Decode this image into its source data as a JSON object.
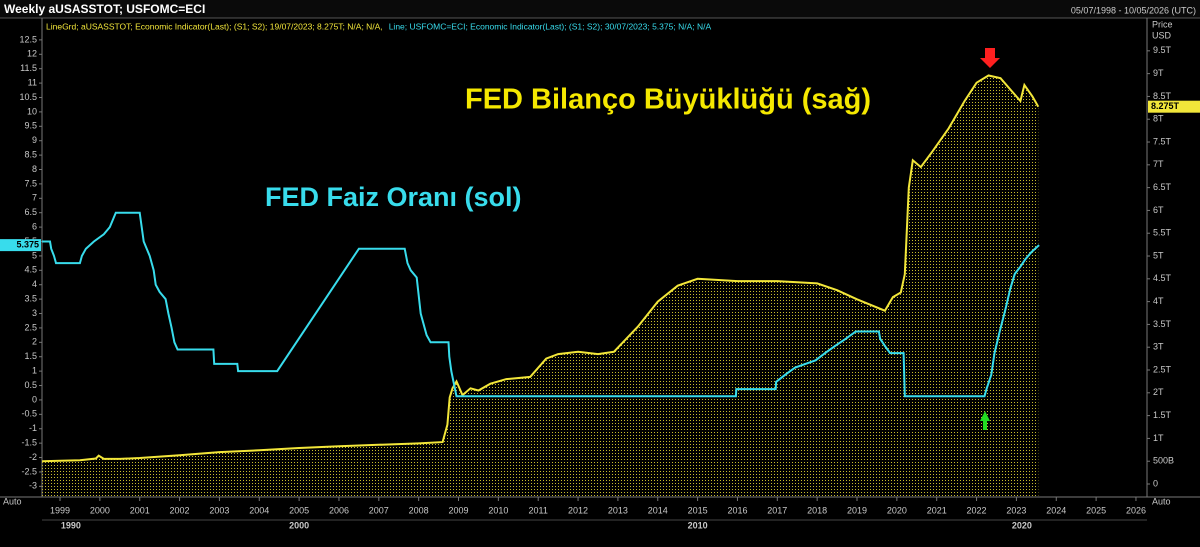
{
  "chart_data": {
    "type": "line",
    "title": "Weekly aUSASSTOT; USFOMC=ECI",
    "date_range": "05/07/1998 - 10/05/2026 (UTC)",
    "y2_label_lines": [
      "Price",
      "USD"
    ],
    "axis_mode": "Auto",
    "annotations": [
      "FED Bilanço Büyüklüğü (sağ)",
      "FED Faiz Oranı (sol)"
    ],
    "xlim": [
      1998.548,
      2026.277
    ],
    "xticks": [
      1999,
      2000,
      2001,
      2002,
      2003,
      2004,
      2005,
      2006,
      2007,
      2008,
      2009,
      2010,
      2011,
      2012,
      2013,
      2014,
      2015,
      2016,
      2017,
      2018,
      2019,
      2020,
      2021,
      2022,
      2023,
      2024,
      2025,
      2026
    ],
    "decade_ticks": [
      1990,
      2000,
      2010,
      2020
    ],
    "ylim": [
      -3.37,
      13.26
    ],
    "yticks": [
      -3,
      -2.5,
      -2,
      -1.5,
      -1,
      -0.5,
      0,
      0.5,
      1,
      1.5,
      2,
      2.5,
      3,
      3.5,
      4,
      4.5,
      5,
      5.5,
      6,
      6.5,
      7,
      7.5,
      8,
      8.5,
      9,
      9.5,
      10,
      10.5,
      11,
      11.5,
      12,
      12.5
    ],
    "y2lim": [
      -0.285,
      10.22
    ],
    "y2ticks": [
      0,
      {
        "value": 0.5,
        "label": "500B"
      },
      {
        "value": 1,
        "label": "1T"
      },
      {
        "value": 1.5,
        "label": "1.5T"
      },
      {
        "value": 2,
        "label": "2T"
      },
      {
        "value": 2.5,
        "label": "2.5T"
      },
      {
        "value": 3,
        "label": "3T"
      },
      {
        "value": 3.5,
        "label": "3.5T"
      },
      {
        "value": 4,
        "label": "4T"
      },
      {
        "value": 4.5,
        "label": "4.5T"
      },
      {
        "value": 5,
        "label": "5T"
      },
      {
        "value": 5.5,
        "label": "5.5T"
      },
      {
        "value": 6,
        "label": "6T"
      },
      {
        "value": 6.5,
        "label": "6.5T"
      },
      {
        "value": 7,
        "label": "7T"
      },
      {
        "value": 7.5,
        "label": "7.5T"
      },
      {
        "value": 8,
        "label": "8T"
      },
      {
        "value": 8.5,
        "label": "8.5T"
      },
      {
        "value": 9,
        "label": "9T"
      },
      {
        "value": 9.5,
        "label": "9.5T"
      }
    ],
    "series": [
      {
        "name": "LineGrd; aUSASSTOT; Economic Indicator(Last); (S1; S2); 19/07/2023; 8.275T; N/A; N/A,",
        "color": "#f2e63a",
        "axis": "y2",
        "fill": "dotted",
        "last_label": "8.275T",
        "x": [
          1998.55,
          1999.0,
          1999.5,
          1999.9,
          1999.97,
          2000.1,
          2000.5,
          2001,
          2002,
          2003,
          2004,
          2005,
          2006,
          2007,
          2008,
          2008.6,
          2008.72,
          2008.78,
          2008.85,
          2008.95,
          2009.1,
          2009.3,
          2009.5,
          2009.8,
          2010.2,
          2010.8,
          2011.2,
          2011.5,
          2012.0,
          2012.5,
          2012.9,
          2013.5,
          2014.0,
          2014.5,
          2015.0,
          2016.0,
          2017.0,
          2018.0,
          2018.5,
          2019.0,
          2019.7,
          2019.9,
          2020.1,
          2020.2,
          2020.3,
          2020.4,
          2020.6,
          2020.9,
          2021.3,
          2021.7,
          2022.0,
          2022.3,
          2022.6,
          2022.9,
          2023.1,
          2023.2,
          2023.4,
          2023.55
        ],
        "values": [
          0.5,
          0.51,
          0.52,
          0.56,
          0.62,
          0.55,
          0.55,
          0.57,
          0.63,
          0.7,
          0.74,
          0.79,
          0.83,
          0.86,
          0.89,
          0.92,
          1.3,
          1.9,
          2.1,
          2.25,
          1.95,
          2.1,
          2.05,
          2.2,
          2.3,
          2.35,
          2.75,
          2.85,
          2.9,
          2.85,
          2.9,
          3.45,
          4.0,
          4.35,
          4.5,
          4.45,
          4.45,
          4.4,
          4.25,
          4.05,
          3.8,
          4.1,
          4.2,
          4.6,
          6.5,
          7.1,
          6.95,
          7.3,
          7.8,
          8.4,
          8.8,
          8.96,
          8.9,
          8.6,
          8.4,
          8.75,
          8.5,
          8.275
        ]
      },
      {
        "name": "Line; USFOMC=ECI; Economic Indicator(Last); (S1; S2); 30/07/2023; 5.375; N/A; N/A",
        "color": "#38dcec",
        "axis": "y",
        "last_label": "5.375",
        "x": [
          1998.55,
          1998.75,
          1998.78,
          1998.85,
          1998.9,
          1999.5,
          1999.55,
          1999.65,
          1999.85,
          2000.1,
          2000.25,
          2000.4,
          2001.0,
          2001.05,
          2001.1,
          2001.25,
          2001.35,
          2001.4,
          2001.5,
          2001.65,
          2001.72,
          2001.8,
          2001.87,
          2001.95,
          2002.85,
          2002.87,
          2003.45,
          2003.47,
          2004.45,
          2006.5,
          2007.65,
          2007.72,
          2007.8,
          2007.95,
          2008.05,
          2008.2,
          2008.3,
          2008.75,
          2008.77,
          2008.82,
          2008.95,
          2015.96,
          2015.97,
          2016.96,
          2016.97,
          2017.2,
          2017.45,
          2017.96,
          2018.2,
          2018.45,
          2018.72,
          2018.97,
          2019.55,
          2019.58,
          2019.7,
          2019.83,
          2020.17,
          2020.2,
          2022.2,
          2022.25,
          2022.37,
          2022.45,
          2022.58,
          2022.72,
          2022.85,
          2022.96,
          2023.1,
          2023.22,
          2023.37,
          2023.57
        ],
        "values": [
          5.5,
          5.5,
          5.25,
          5.0,
          4.75,
          4.75,
          5.0,
          5.25,
          5.5,
          5.75,
          6.0,
          6.5,
          6.5,
          6.0,
          5.5,
          5.0,
          4.5,
          4.0,
          3.75,
          3.5,
          3.0,
          2.5,
          2.0,
          1.75,
          1.75,
          1.25,
          1.25,
          1.0,
          1.0,
          5.25,
          5.25,
          4.75,
          4.5,
          4.25,
          3.0,
          2.25,
          2.0,
          2.0,
          1.5,
          1.0,
          0.125,
          0.125,
          0.375,
          0.375,
          0.625,
          0.875,
          1.125,
          1.375,
          1.625,
          1.875,
          2.125,
          2.375,
          2.375,
          2.125,
          1.875,
          1.625,
          1.625,
          0.125,
          0.125,
          0.375,
          0.875,
          1.625,
          2.375,
          3.125,
          3.875,
          4.375,
          4.625,
          4.875,
          5.125,
          5.375
        ]
      }
    ]
  }
}
